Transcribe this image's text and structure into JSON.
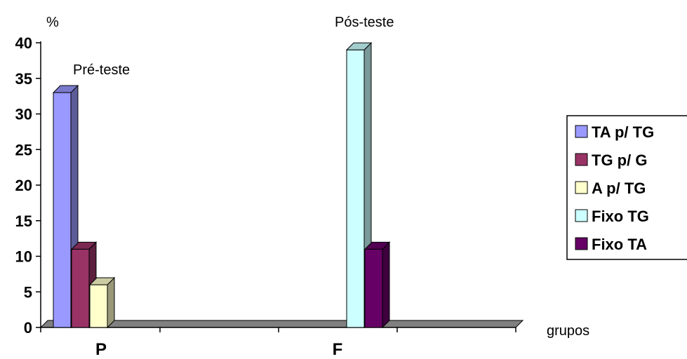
{
  "chart_data": {
    "type": "bar",
    "ylabel": "%",
    "xlabel": "grupos",
    "ylim": [
      0,
      40
    ],
    "yticks": [
      0,
      5,
      10,
      15,
      20,
      25,
      30,
      35,
      40
    ],
    "categories": [
      "P",
      "F"
    ],
    "series": [
      {
        "name": "TA p/ TG",
        "color": "#9999ff",
        "values": [
          33,
          0
        ]
      },
      {
        "name": "TG p/ G",
        "color": "#993366",
        "values": [
          11,
          0
        ]
      },
      {
        "name": "A p/ TG",
        "color": "#ffffcc",
        "values": [
          6,
          0
        ]
      },
      {
        "name": "Fixo TG",
        "color": "#ccffff",
        "values": [
          0,
          39
        ]
      },
      {
        "name": "Fixo TA",
        "color": "#660066",
        "values": [
          0,
          11
        ]
      }
    ],
    "annotations": [
      {
        "text": "Pré-teste",
        "category": "P"
      },
      {
        "text": "Pós-teste",
        "category": "F"
      }
    ],
    "legend_position": "right",
    "grid": false,
    "three_d": true
  }
}
